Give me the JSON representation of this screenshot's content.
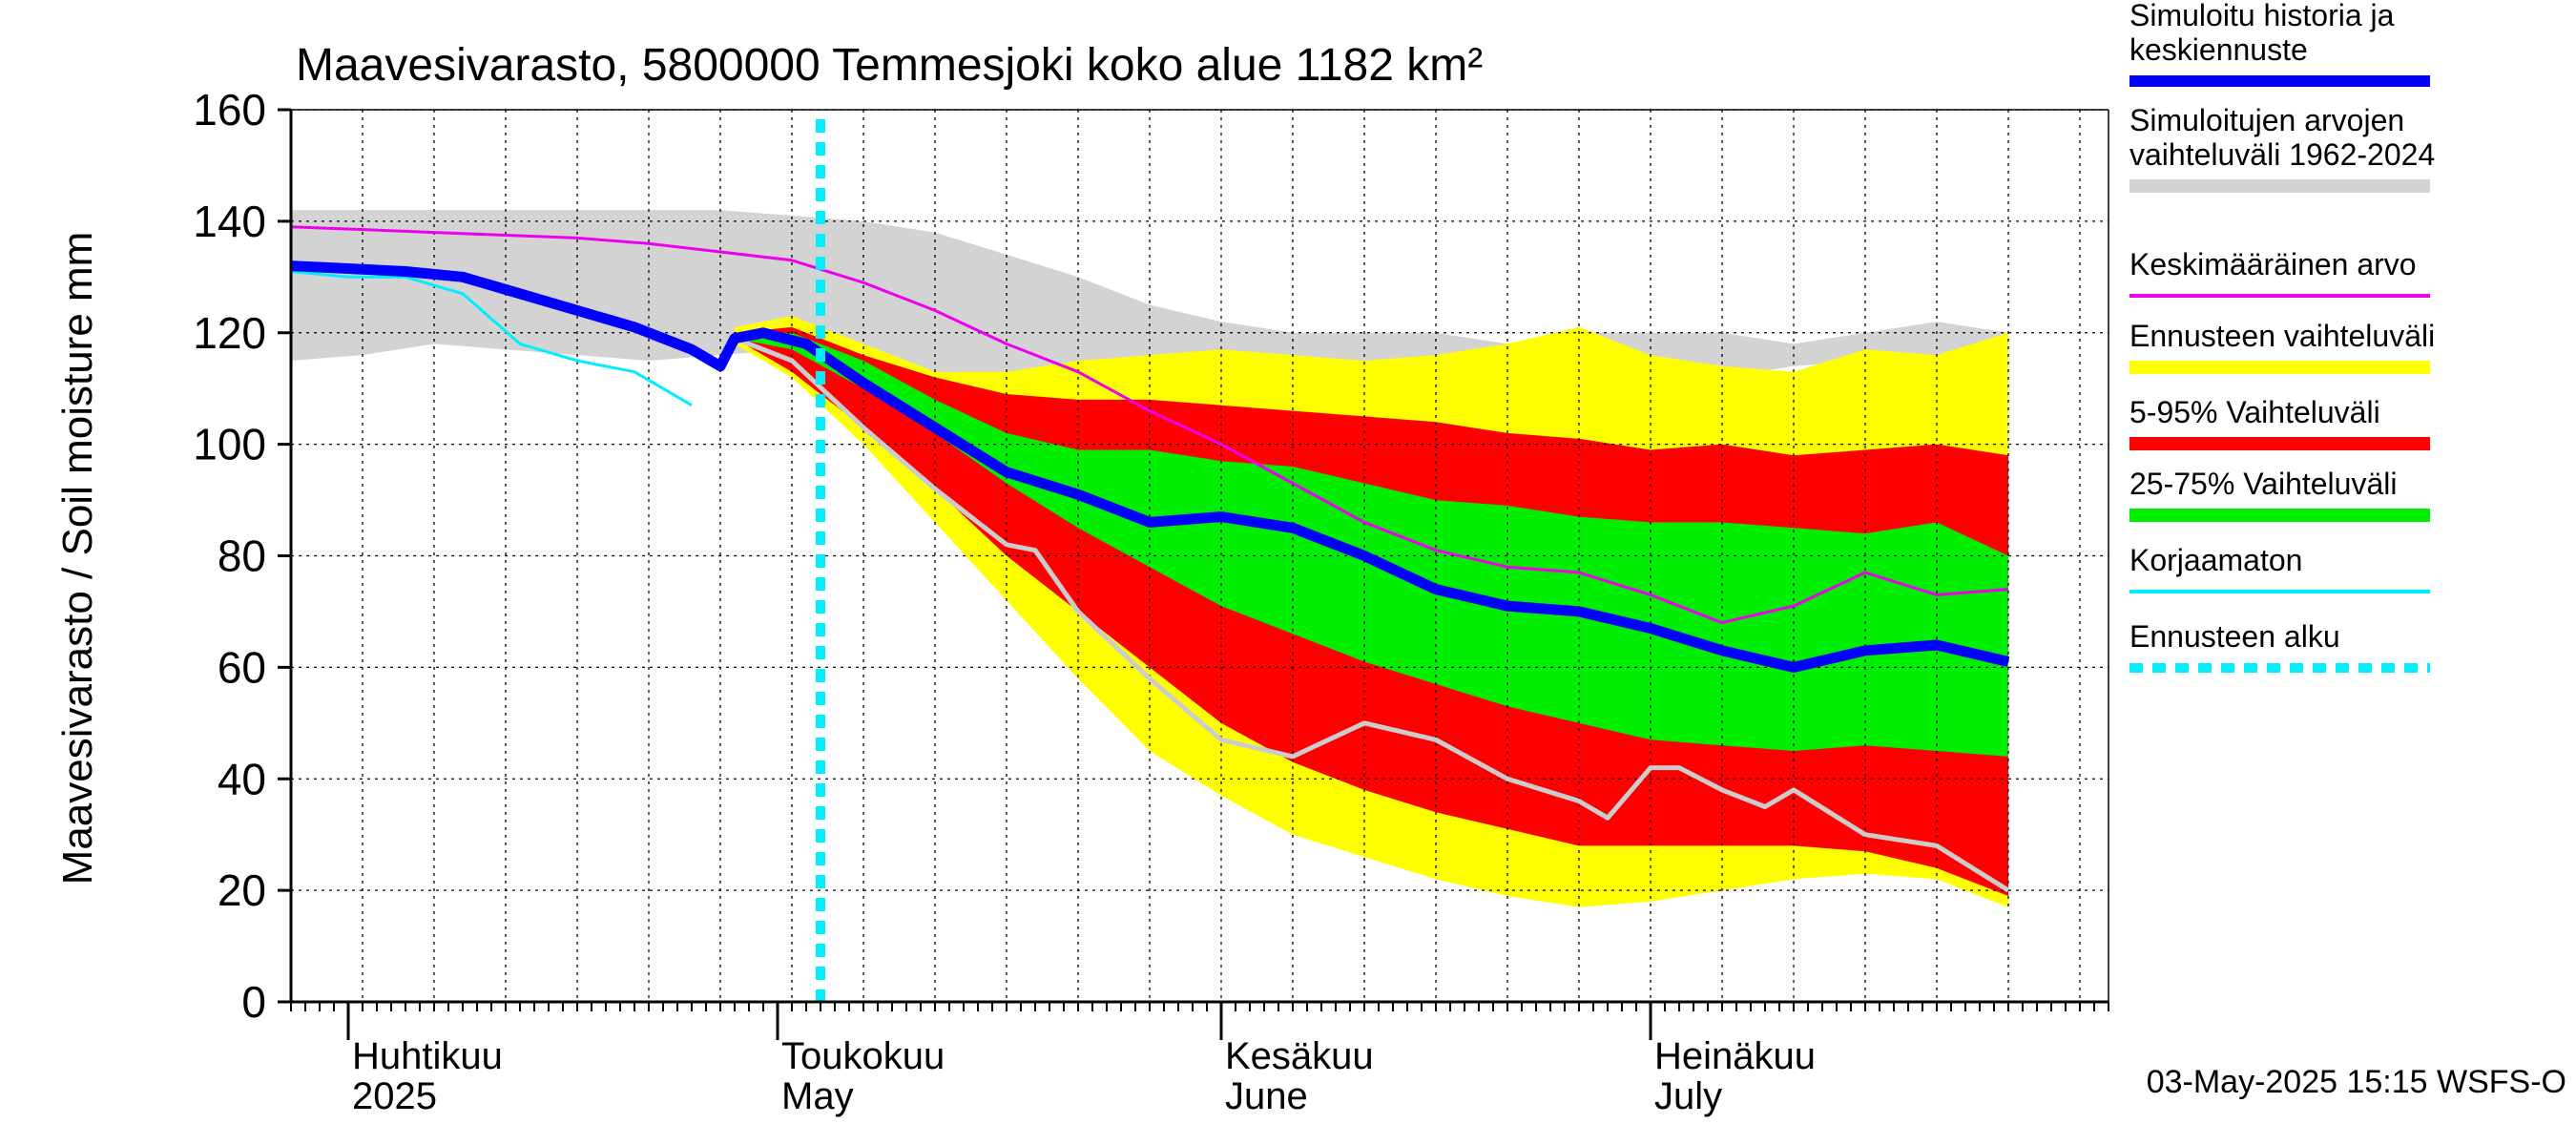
{
  "chart_data": {
    "type": "area",
    "title": "Maavesivarasto, 5800000 Temmesjoki koko alue 1182 km²",
    "ylabel": "Maavesivarasto / Soil moisture   mm",
    "xlabel": "",
    "ylim": [
      0,
      160
    ],
    "yticks": [
      0,
      20,
      40,
      60,
      80,
      100,
      120,
      140,
      160
    ],
    "x_range": [
      "2025-03-28",
      "2025-08-03"
    ],
    "x_unit": "days since 2025-03-28",
    "grid": true,
    "legend_position": "right",
    "forecast_start": 37,
    "months": [
      {
        "label1": "Huhtikuu",
        "label2": "2025",
        "day": 4
      },
      {
        "label1": "Toukokuu",
        "label2": "May",
        "day": 34
      },
      {
        "label1": "Kesäkuu",
        "label2": "June",
        "day": 65
      },
      {
        "label1": "Heinäkuu",
        "label2": "July",
        "day": 95
      }
    ],
    "footer": "03-May-2025 15:15 WSFS-O",
    "series": [
      {
        "name": "Simuloitujen arvojen vaihteluväli 1962-2024",
        "kind": "band",
        "color": "#d3d3d3",
        "x": [
          0,
          5,
          10,
          15,
          20,
          25,
          30,
          35,
          40,
          45,
          50,
          55,
          60,
          65,
          70,
          75,
          80,
          85,
          90,
          95,
          100,
          105,
          110,
          115,
          120
        ],
        "lower": [
          115,
          116,
          118,
          117,
          116,
          115,
          116,
          117,
          112,
          107,
          100,
          95,
          92,
          95,
          98,
          100,
          103,
          105,
          108,
          110,
          112,
          114,
          115,
          115,
          116
        ],
        "upper": [
          142,
          142,
          142,
          142,
          142,
          142,
          142,
          141,
          140,
          138,
          134,
          130,
          125,
          122,
          120,
          120,
          120,
          118,
          120,
          120,
          120,
          118,
          120,
          122,
          120
        ]
      },
      {
        "name": "Ennusteen vaihteluväli",
        "kind": "band",
        "color": "#ffff00",
        "x": [
          31,
          35,
          40,
          45,
          50,
          55,
          60,
          65,
          70,
          75,
          80,
          85,
          90,
          95,
          100,
          105,
          110,
          115,
          120
        ],
        "lower": [
          118,
          112,
          100,
          86,
          72,
          58,
          45,
          37,
          30,
          26,
          22,
          19,
          17,
          18,
          20,
          22,
          23,
          22,
          17
        ],
        "upper": [
          121,
          123,
          118,
          113,
          113,
          115,
          116,
          117,
          116,
          115,
          116,
          118,
          121,
          116,
          114,
          113,
          117,
          116,
          120
        ]
      },
      {
        "name": "5-95% Vaihteluväli",
        "kind": "band",
        "color": "#ff0000",
        "x": [
          31,
          35,
          40,
          45,
          50,
          55,
          60,
          65,
          70,
          75,
          80,
          85,
          90,
          95,
          100,
          105,
          110,
          115,
          120
        ],
        "lower": [
          119,
          113,
          103,
          92,
          80,
          70,
          60,
          50,
          43,
          38,
          34,
          31,
          28,
          28,
          28,
          28,
          27,
          24,
          19
        ],
        "upper": [
          120,
          121,
          116,
          112,
          109,
          108,
          108,
          107,
          106,
          105,
          104,
          102,
          101,
          99,
          100,
          98,
          99,
          100,
          98
        ]
      },
      {
        "name": "25-75% Vaihteluväli",
        "kind": "band",
        "color": "#00ee00",
        "x": [
          31,
          35,
          40,
          45,
          50,
          55,
          60,
          65,
          70,
          75,
          80,
          85,
          90,
          95,
          100,
          105,
          110,
          115,
          120
        ],
        "lower": [
          119,
          117,
          110,
          102,
          93,
          85,
          78,
          71,
          66,
          61,
          57,
          53,
          50,
          47,
          46,
          45,
          46,
          45,
          44
        ],
        "upper": [
          120,
          120,
          115,
          108,
          102,
          99,
          99,
          97,
          96,
          93,
          90,
          89,
          87,
          86,
          86,
          85,
          84,
          86,
          80
        ]
      },
      {
        "name": "Keskimääräinen arvo",
        "kind": "line",
        "color": "#ee00ee",
        "x": [
          0,
          5,
          10,
          15,
          20,
          25,
          30,
          35,
          40,
          45,
          50,
          55,
          60,
          65,
          70,
          75,
          80,
          85,
          90,
          95,
          100,
          105,
          110,
          115,
          120
        ],
        "values": [
          139,
          138.5,
          138,
          137.5,
          137,
          136,
          134.5,
          133,
          129,
          124,
          118,
          113,
          106,
          100,
          93,
          86,
          81,
          78,
          77,
          73,
          68,
          71,
          77,
          73,
          74
        ]
      },
      {
        "name": "Korjaamaton",
        "kind": "line",
        "color": "#00eeff",
        "x": [
          0,
          4,
          8,
          12,
          16,
          20,
          24,
          28
        ],
        "values": [
          131,
          130,
          130,
          127,
          118,
          115,
          113,
          107
        ]
      },
      {
        "name": "Simuloitu historia ja keskiennuste",
        "kind": "line",
        "color": "#0000ff",
        "x": [
          0,
          4,
          8,
          12,
          16,
          20,
          24,
          28,
          30,
          31,
          33,
          36,
          40,
          45,
          50,
          55,
          60,
          65,
          70,
          75,
          80,
          85,
          90,
          95,
          100,
          105,
          110,
          115,
          120
        ],
        "values": [
          132,
          131.5,
          131,
          130,
          127,
          124,
          121,
          117,
          114,
          119,
          120,
          118,
          111,
          103,
          95,
          91,
          86,
          87,
          85,
          80,
          74,
          71,
          70,
          67,
          63,
          60,
          63,
          64,
          61
        ]
      },
      {
        "name": "Lowest history (gray line)",
        "kind": "line",
        "color": "#cccccc",
        "legend": false,
        "x": [
          31,
          35,
          40,
          45,
          50,
          52,
          55,
          60,
          65,
          70,
          75,
          80,
          85,
          90,
          92,
          95,
          97,
          100,
          103,
          105,
          110,
          115,
          120
        ],
        "values": [
          119,
          115,
          103,
          92,
          82,
          81,
          70,
          58,
          47,
          44,
          50,
          47,
          40,
          36,
          33,
          42,
          42,
          38,
          35,
          38,
          30,
          28,
          20
        ]
      }
    ]
  },
  "legend": [
    {
      "label": "Simuloitu historia ja keskiennuste",
      "color": "#0000ff",
      "style": "thick"
    },
    {
      "label": "Simuloitujen arvojen vaihteluväli 1962-2024",
      "color": "#d3d3d3",
      "style": "band"
    },
    {
      "label": "Keskimääräinen arvo",
      "color": "#ee00ee",
      "style": "thin"
    },
    {
      "label": "Ennusteen vaihteluväli",
      "color": "#ffff00",
      "style": "band"
    },
    {
      "label": "5-95% Vaihteluväli",
      "color": "#ff0000",
      "style": "band"
    },
    {
      "label": "25-75% Vaihteluväli",
      "color": "#00ee00",
      "style": "band"
    },
    {
      "label": "Korjaamaton",
      "color": "#00eeff",
      "style": "thin"
    },
    {
      "label": "Ennusteen alku",
      "color": "#00eeff",
      "style": "dashed"
    }
  ]
}
